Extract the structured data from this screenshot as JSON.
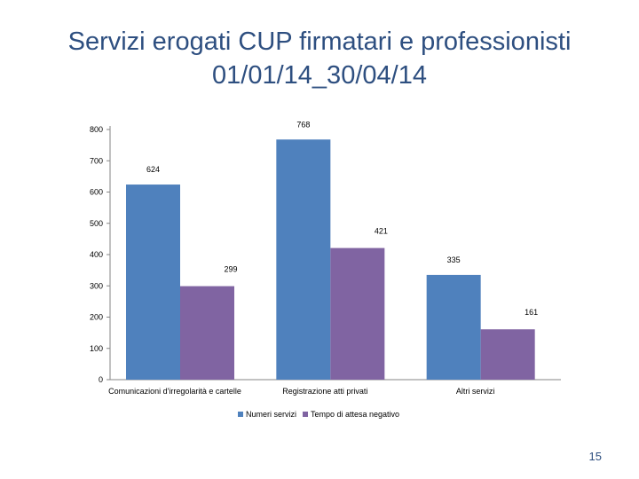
{
  "slide": {
    "title_line1": "Servizi erogati CUP firmatari e professionisti",
    "title_line2": "01/01/14_30/04/14",
    "page_number": "15"
  },
  "chart_data": {
    "type": "bar",
    "categories": [
      "Comunicazioni d'irregolarità e cartelle",
      "Registrazione atti privati",
      "Altri servizi"
    ],
    "series": [
      {
        "name": "Numeri servizi",
        "values": [
          624,
          768,
          335
        ],
        "color": "#4f81bd"
      },
      {
        "name": "Tempo di attesa negativo",
        "values": [
          299,
          421,
          161
        ],
        "color": "#8064a2"
      }
    ],
    "yticks": [
      0,
      100,
      200,
      300,
      400,
      500,
      600,
      700,
      800
    ],
    "ylim": [
      0,
      800
    ],
    "grid": false,
    "legend": "bottom",
    "data_labels": true
  }
}
